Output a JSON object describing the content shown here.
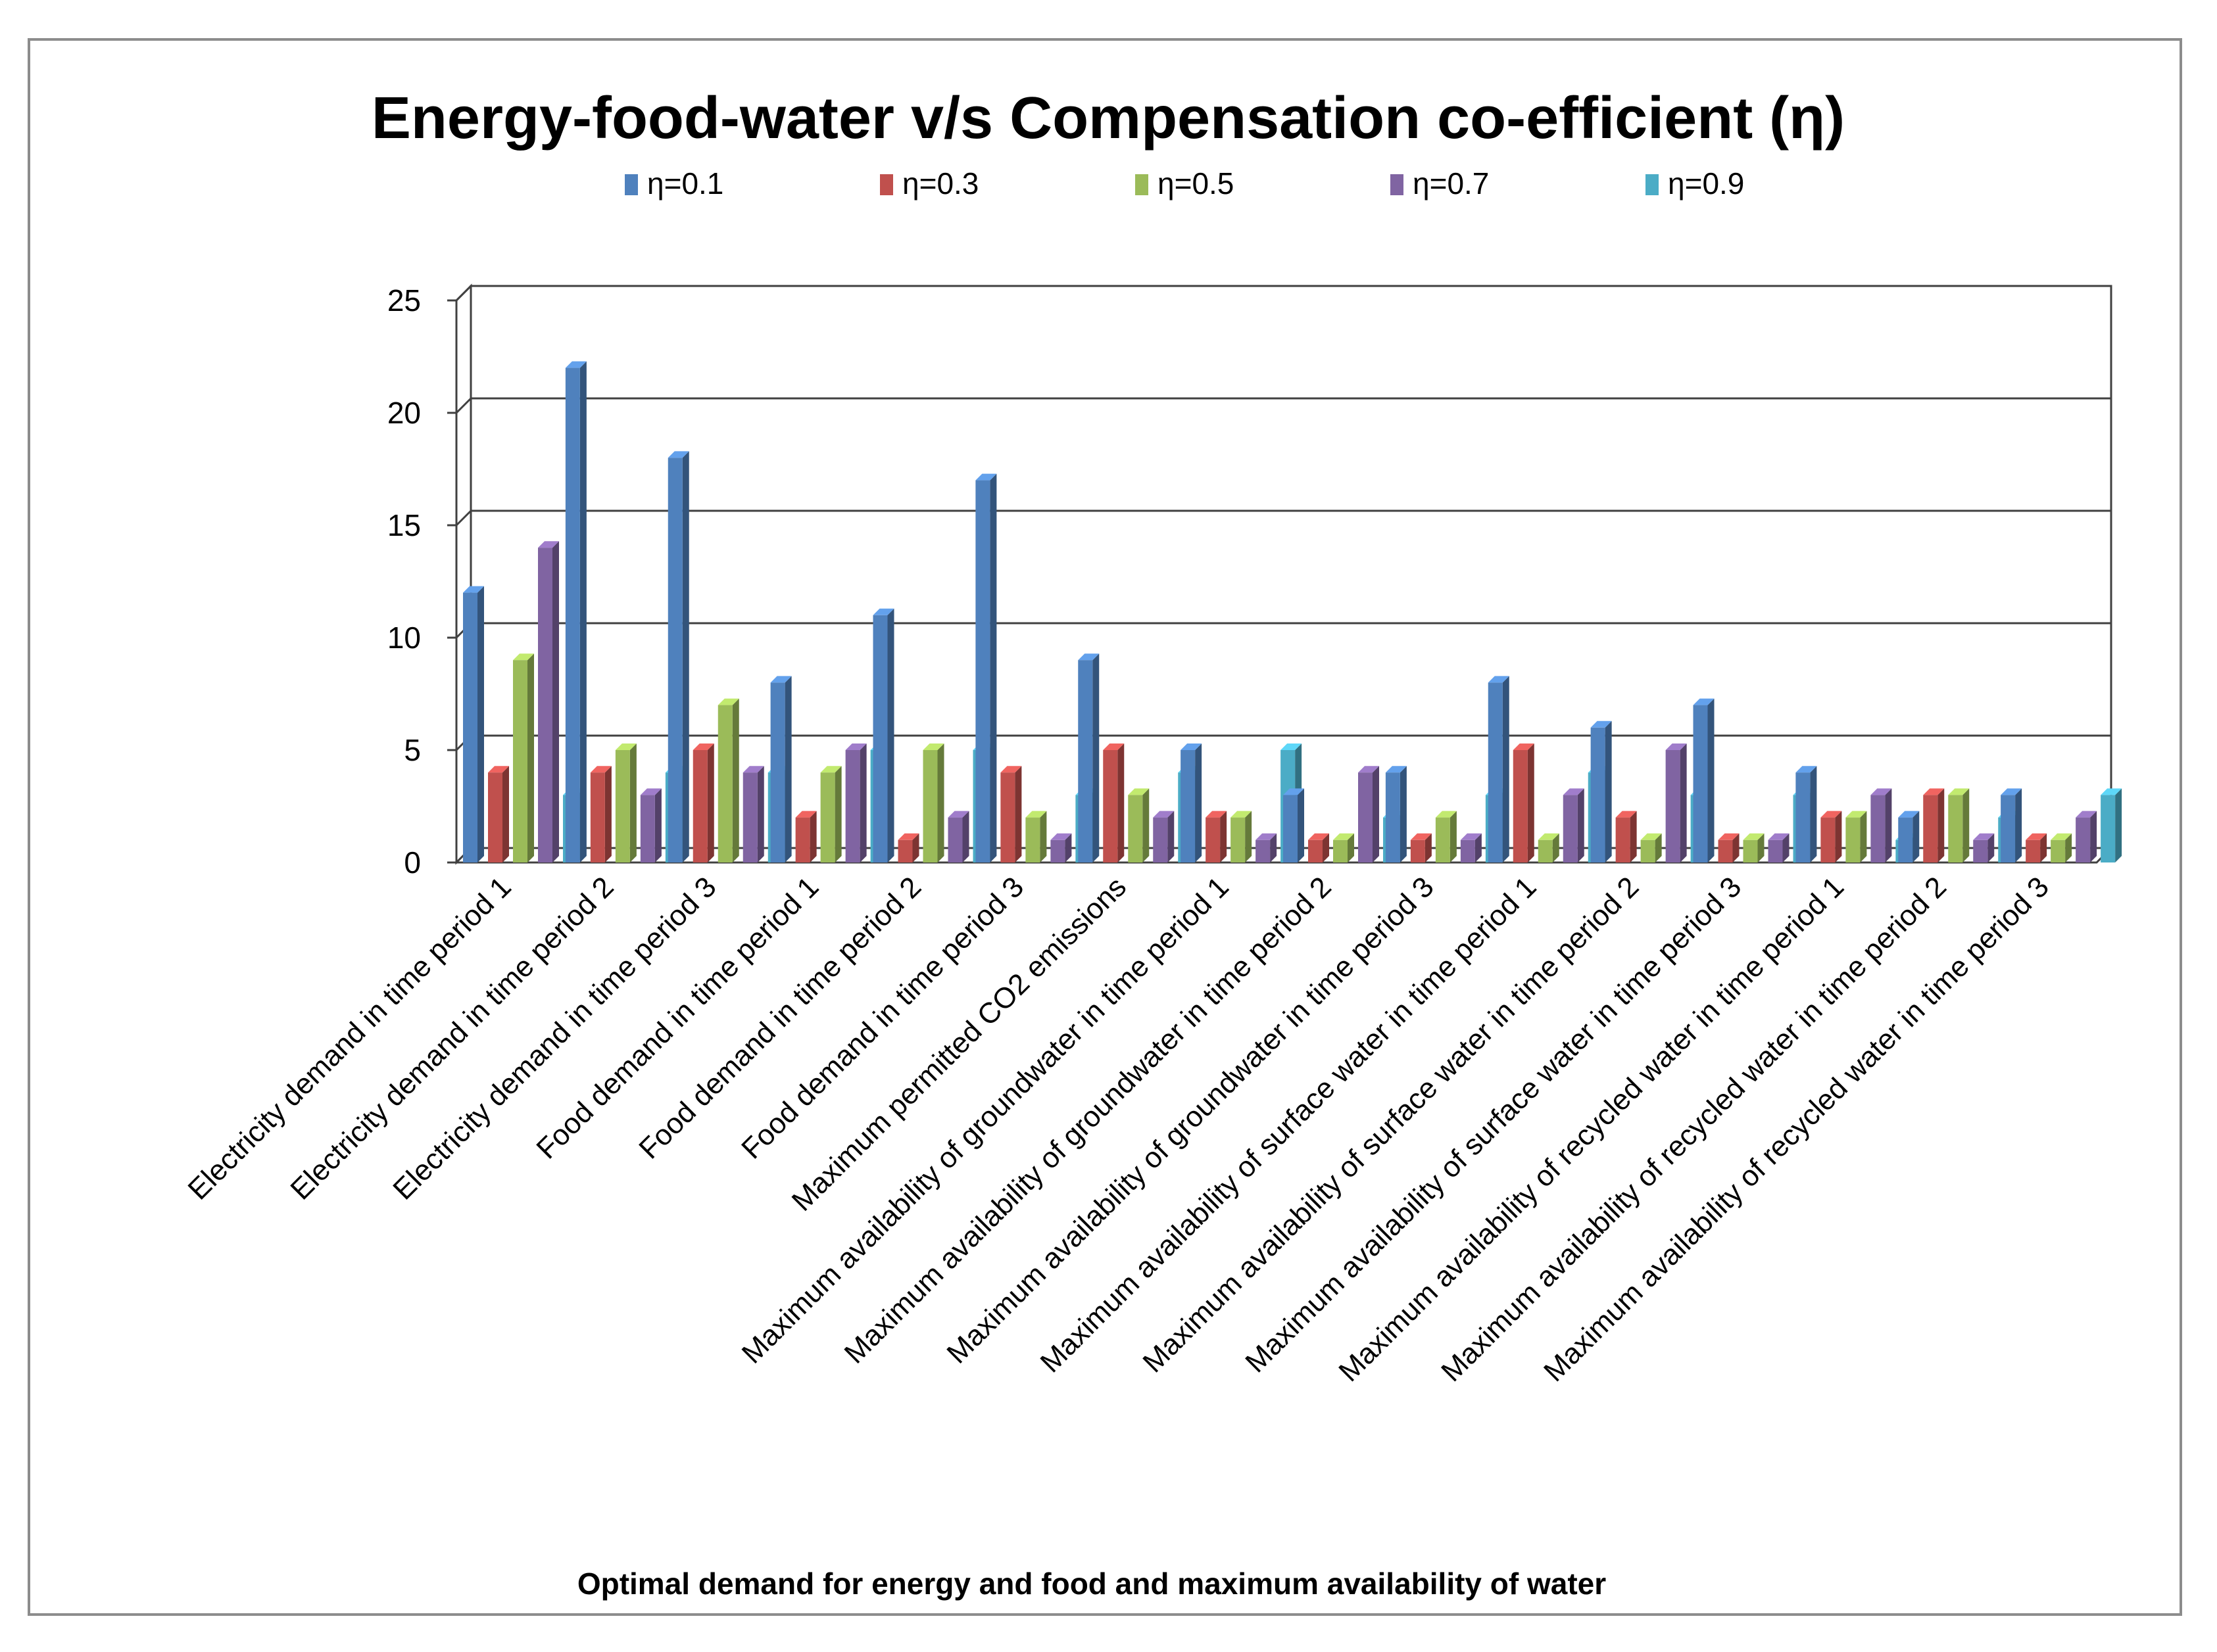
{
  "chart_data": {
    "type": "bar",
    "title": "Energy-food-water v/s Compensation co-efficient (η)",
    "xlabel": "Optimal demand for energy and food and maximum availability  of water",
    "ylabel": "",
    "ylim": [
      0,
      25
    ],
    "yticks": [
      "0",
      "5",
      "10",
      "15",
      "20",
      "25"
    ],
    "grid": true,
    "legend_position": "top",
    "categories": [
      "Electricity demand in time period 1",
      "Electricity demand in time period 2",
      "Electricity demand in time period 3",
      "Food demand in time period 1",
      "Food demand in time period 2",
      "Food demand in time period 3",
      "Maximum permitted CO2 emissions",
      "Maximum availability of groundwater in time period 1",
      "Maximum availability of groundwater in time period 2",
      "Maximum availability of groundwater in time period 3",
      "Maximum availability of surface water in time period 1",
      "Maximum availability of surface water in time period 2",
      "Maximum availability of surface water in time period 3",
      "Maximum availability of recycled water in time period 1",
      "Maximum availability of recycled water in time period 2",
      "Maximum availability of recycled water in time period 3"
    ],
    "series": [
      {
        "name": "η=0.1",
        "color": "#4f81bd",
        "values": [
          12,
          22,
          18,
          8,
          11,
          17,
          9,
          5,
          3,
          4,
          8,
          6,
          7,
          4,
          2,
          3
        ]
      },
      {
        "name": "η=0.3",
        "color": "#c0504d",
        "values": [
          4,
          4,
          5,
          2,
          1,
          4,
          5,
          2,
          1,
          1,
          5,
          2,
          1,
          2,
          3,
          1
        ]
      },
      {
        "name": "η=0.5",
        "color": "#9bbb59",
        "values": [
          9,
          5,
          7,
          4,
          5,
          2,
          3,
          2,
          1,
          2,
          1,
          1,
          1,
          2,
          3,
          1
        ]
      },
      {
        "name": "η=0.7",
        "color": "#8064a2",
        "values": [
          14,
          3,
          4,
          5,
          2,
          1,
          2,
          1,
          4,
          1,
          3,
          5,
          1,
          3,
          1,
          2
        ]
      },
      {
        "name": "η=0.9",
        "color": "#4bacc6",
        "values": [
          3,
          4,
          4,
          5,
          5,
          3,
          4,
          5,
          2,
          3,
          4,
          3,
          3,
          1,
          2,
          3
        ]
      }
    ]
  }
}
